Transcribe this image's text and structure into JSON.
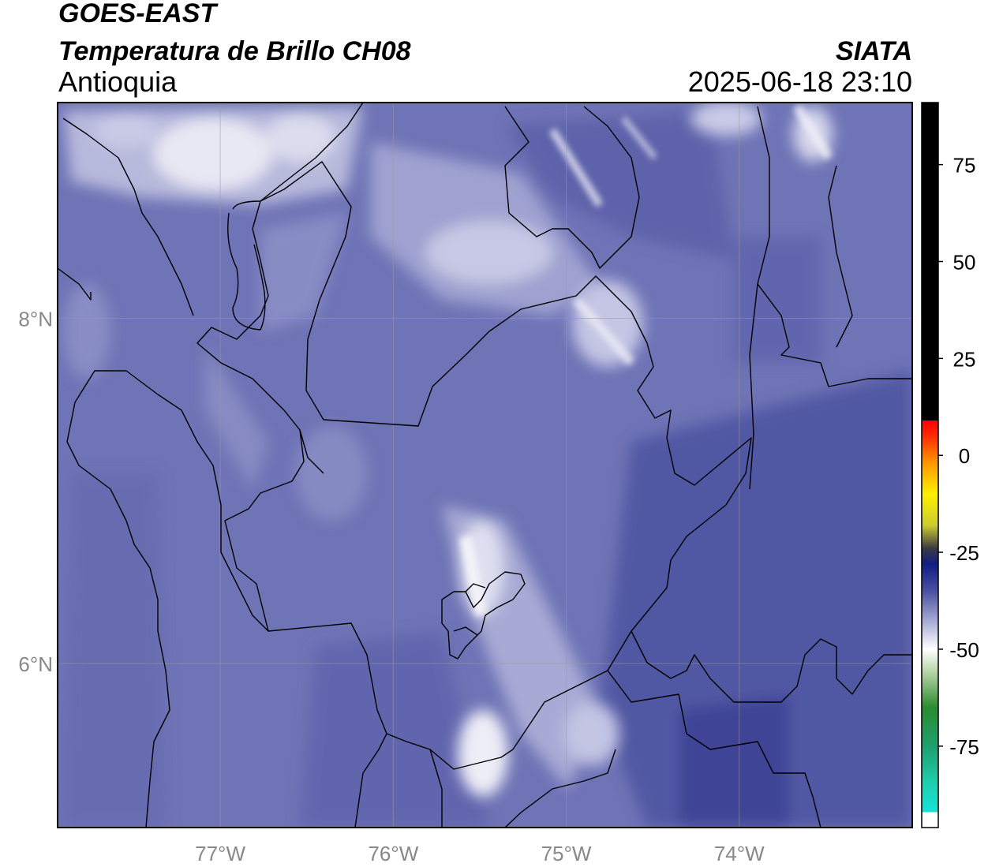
{
  "header": {
    "satellite": "GOES-EAST",
    "product": "Temperatura de Brillo CH08",
    "region": "Antioquia",
    "organization": "SIATA",
    "datetime": "2025-06-18 23:10"
  },
  "map": {
    "lon_range": [
      -77.94,
      -73.0
    ],
    "lat_range": [
      5.05,
      9.25
    ],
    "lon_ticks": [
      {
        "value": -77,
        "label": "77°W"
      },
      {
        "value": -76,
        "label": "76°W"
      },
      {
        "value": -75,
        "label": "75°W"
      },
      {
        "value": -74,
        "label": "74°W"
      }
    ],
    "lat_ticks": [
      {
        "value": 8,
        "label": "8°N"
      },
      {
        "value": 6,
        "label": "6°N"
      }
    ],
    "base_color": "#6f74b6"
  },
  "colorbar": {
    "range": [
      -96,
      91
    ],
    "ticks": [
      {
        "value": 75,
        "label": "75"
      },
      {
        "value": 50,
        "label": "50"
      },
      {
        "value": 25,
        "label": "25"
      },
      {
        "value": 0,
        "label": "0"
      },
      {
        "value": -25,
        "label": "-25"
      },
      {
        "value": -50,
        "label": "-50"
      },
      {
        "value": -75,
        "label": "-75"
      }
    ],
    "color_stops": [
      {
        "value": -96,
        "color": "#ffffff"
      },
      {
        "value": -92,
        "color": "#ffffff"
      },
      {
        "value": -92,
        "color": "#12e4d8"
      },
      {
        "value": -85,
        "color": "#1fd0b0"
      },
      {
        "value": -75,
        "color": "#1ea070"
      },
      {
        "value": -65,
        "color": "#2a8c30"
      },
      {
        "value": -57,
        "color": "#a8cc98"
      },
      {
        "value": -50,
        "color": "#ffffff"
      },
      {
        "value": -42,
        "color": "#9ea2d0"
      },
      {
        "value": -35,
        "color": "#4a50a2"
      },
      {
        "value": -28,
        "color": "#101e84"
      },
      {
        "value": -24,
        "color": "#3a3a44"
      },
      {
        "value": -18,
        "color": "#cccc30"
      },
      {
        "value": -10,
        "color": "#fff000"
      },
      {
        "value": -2,
        "color": "#ff9800"
      },
      {
        "value": 5,
        "color": "#ff2a00"
      },
      {
        "value": 9,
        "color": "#ff0000"
      },
      {
        "value": 9,
        "color": "#000000"
      },
      {
        "value": 91,
        "color": "#000000"
      }
    ]
  }
}
